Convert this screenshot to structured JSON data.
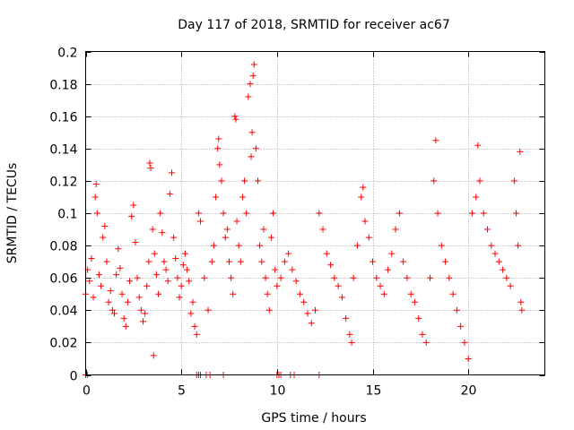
{
  "chart_data": {
    "type": "scatter",
    "title": "Day 117 of 2018, SRMTID for receiver ac67",
    "xlabel": "GPS time / hours",
    "ylabel": "SRMTID / TECUs",
    "xlim": [
      0,
      24
    ],
    "ylim": [
      0,
      0.2
    ],
    "xticks": [
      0,
      5,
      10,
      15,
      20
    ],
    "xtick_labels": [
      "0",
      "5",
      "10",
      "15",
      "20"
    ],
    "yticks": [
      0,
      0.02,
      0.04,
      0.06,
      0.08,
      0.1,
      0.12,
      0.14,
      0.16,
      0.18,
      0.2
    ],
    "ytick_labels": [
      "0",
      "0.02",
      "0.04",
      "0.06",
      "0.08",
      "0.1",
      "0.12",
      "0.14",
      "0.16",
      "0.18",
      "0.2"
    ],
    "grid": true,
    "marker": "+",
    "color": "#ff0000",
    "series": [
      {
        "name": "SRMTID",
        "points": [
          [
            0.0,
            0.05
          ],
          [
            0.1,
            0.065
          ],
          [
            0.2,
            0.058
          ],
          [
            0.3,
            0.072
          ],
          [
            0.4,
            0.048
          ],
          [
            0.5,
            0.11
          ],
          [
            0.55,
            0.118
          ],
          [
            0.6,
            0.1
          ],
          [
            0.7,
            0.062
          ],
          [
            0.8,
            0.055
          ],
          [
            0.9,
            0.085
          ],
          [
            1.0,
            0.092
          ],
          [
            1.1,
            0.07
          ],
          [
            1.2,
            0.045
          ],
          [
            1.3,
            0.052
          ],
          [
            1.4,
            0.04
          ],
          [
            1.5,
            0.038
          ],
          [
            1.6,
            0.062
          ],
          [
            1.7,
            0.078
          ],
          [
            1.8,
            0.066
          ],
          [
            1.9,
            0.05
          ],
          [
            2.0,
            0.035
          ],
          [
            2.1,
            0.03
          ],
          [
            2.2,
            0.045
          ],
          [
            2.3,
            0.058
          ],
          [
            2.4,
            0.098
          ],
          [
            2.5,
            0.105
          ],
          [
            2.6,
            0.082
          ],
          [
            2.7,
            0.06
          ],
          [
            2.8,
            0.048
          ],
          [
            2.9,
            0.04
          ],
          [
            3.0,
            0.033
          ],
          [
            3.1,
            0.038
          ],
          [
            3.2,
            0.055
          ],
          [
            3.3,
            0.07
          ],
          [
            3.35,
            0.131
          ],
          [
            3.4,
            0.128
          ],
          [
            3.5,
            0.09
          ],
          [
            3.55,
            0.012
          ],
          [
            3.6,
            0.075
          ],
          [
            3.7,
            0.062
          ],
          [
            3.8,
            0.05
          ],
          [
            3.9,
            0.1
          ],
          [
            4.0,
            0.088
          ],
          [
            4.1,
            0.07
          ],
          [
            4.2,
            0.065
          ],
          [
            4.3,
            0.058
          ],
          [
            4.4,
            0.112
          ],
          [
            4.5,
            0.125
          ],
          [
            4.6,
            0.085
          ],
          [
            4.7,
            0.072
          ],
          [
            4.8,
            0.06
          ],
          [
            4.9,
            0.048
          ],
          [
            5.0,
            0.055
          ],
          [
            5.1,
            0.068
          ],
          [
            5.2,
            0.075
          ],
          [
            5.3,
            0.065
          ],
          [
            5.4,
            0.058
          ],
          [
            5.5,
            0.038
          ],
          [
            5.6,
            0.045
          ],
          [
            5.7,
            0.03
          ],
          [
            5.8,
            0.025
          ],
          [
            5.9,
            0.1
          ],
          [
            6.0,
            0.095
          ],
          [
            6.2,
            0.06
          ],
          [
            6.4,
            0.04
          ],
          [
            6.6,
            0.07
          ],
          [
            6.7,
            0.08
          ],
          [
            6.8,
            0.11
          ],
          [
            6.9,
            0.14
          ],
          [
            6.95,
            0.146
          ],
          [
            7.0,
            0.13
          ],
          [
            7.1,
            0.12
          ],
          [
            7.2,
            0.1
          ],
          [
            7.3,
            0.085
          ],
          [
            7.4,
            0.09
          ],
          [
            7.5,
            0.07
          ],
          [
            7.6,
            0.06
          ],
          [
            7.7,
            0.05
          ],
          [
            7.8,
            0.16
          ],
          [
            7.85,
            0.158
          ],
          [
            7.9,
            0.095
          ],
          [
            8.0,
            0.08
          ],
          [
            8.1,
            0.07
          ],
          [
            8.2,
            0.11
          ],
          [
            8.3,
            0.12
          ],
          [
            8.4,
            0.1
          ],
          [
            8.5,
            0.172
          ],
          [
            8.6,
            0.18
          ],
          [
            8.65,
            0.135
          ],
          [
            8.7,
            0.15
          ],
          [
            8.75,
            0.185
          ],
          [
            8.8,
            0.192
          ],
          [
            8.9,
            0.14
          ],
          [
            9.0,
            0.12
          ],
          [
            9.1,
            0.08
          ],
          [
            9.2,
            0.07
          ],
          [
            9.3,
            0.09
          ],
          [
            9.4,
            0.06
          ],
          [
            9.5,
            0.05
          ],
          [
            9.6,
            0.04
          ],
          [
            9.7,
            0.085
          ],
          [
            9.8,
            0.1
          ],
          [
            9.9,
            0.065
          ],
          [
            10.0,
            0.055
          ],
          [
            10.2,
            0.06
          ],
          [
            10.4,
            0.07
          ],
          [
            10.6,
            0.075
          ],
          [
            10.8,
            0.065
          ],
          [
            11.0,
            0.058
          ],
          [
            11.2,
            0.05
          ],
          [
            11.4,
            0.045
          ],
          [
            11.6,
            0.038
          ],
          [
            11.8,
            0.032
          ],
          [
            12.0,
            0.04
          ],
          [
            12.2,
            0.1
          ],
          [
            12.4,
            0.09
          ],
          [
            12.6,
            0.075
          ],
          [
            12.8,
            0.068
          ],
          [
            13.0,
            0.06
          ],
          [
            13.2,
            0.055
          ],
          [
            13.4,
            0.048
          ],
          [
            13.6,
            0.035
          ],
          [
            13.8,
            0.025
          ],
          [
            13.9,
            0.02
          ],
          [
            14.0,
            0.06
          ],
          [
            14.2,
            0.08
          ],
          [
            14.4,
            0.11
          ],
          [
            14.5,
            0.116
          ],
          [
            14.6,
            0.095
          ],
          [
            14.8,
            0.085
          ],
          [
            15.0,
            0.07
          ],
          [
            15.2,
            0.06
          ],
          [
            15.4,
            0.055
          ],
          [
            15.6,
            0.05
          ],
          [
            15.8,
            0.065
          ],
          [
            16.0,
            0.075
          ],
          [
            16.2,
            0.09
          ],
          [
            16.4,
            0.1
          ],
          [
            16.6,
            0.07
          ],
          [
            16.8,
            0.06
          ],
          [
            17.0,
            0.05
          ],
          [
            17.2,
            0.045
          ],
          [
            17.4,
            0.035
          ],
          [
            17.6,
            0.025
          ],
          [
            17.8,
            0.02
          ],
          [
            18.0,
            0.06
          ],
          [
            18.2,
            0.12
          ],
          [
            18.3,
            0.145
          ],
          [
            18.4,
            0.1
          ],
          [
            18.6,
            0.08
          ],
          [
            18.8,
            0.07
          ],
          [
            19.0,
            0.06
          ],
          [
            19.2,
            0.05
          ],
          [
            19.4,
            0.04
          ],
          [
            19.6,
            0.03
          ],
          [
            19.8,
            0.02
          ],
          [
            20.0,
            0.01
          ],
          [
            20.2,
            0.1
          ],
          [
            20.4,
            0.11
          ],
          [
            20.5,
            0.142
          ],
          [
            20.6,
            0.12
          ],
          [
            20.8,
            0.1
          ],
          [
            21.0,
            0.09
          ],
          [
            21.2,
            0.08
          ],
          [
            21.4,
            0.075
          ],
          [
            21.6,
            0.07
          ],
          [
            21.8,
            0.065
          ],
          [
            22.0,
            0.06
          ],
          [
            22.2,
            0.055
          ],
          [
            22.4,
            0.12
          ],
          [
            22.5,
            0.1
          ],
          [
            22.6,
            0.08
          ],
          [
            22.7,
            0.138
          ],
          [
            22.75,
            0.045
          ],
          [
            22.8,
            0.04
          ],
          [
            0.0,
            0.0
          ],
          [
            0.1,
            0.0
          ],
          [
            5.8,
            0.0
          ],
          [
            5.9,
            0.0
          ],
          [
            6.0,
            0.0
          ],
          [
            6.3,
            0.0
          ],
          [
            6.5,
            0.0
          ],
          [
            7.2,
            0.0
          ],
          [
            10.0,
            0.0
          ],
          [
            10.1,
            0.0
          ],
          [
            10.2,
            0.0
          ],
          [
            10.7,
            0.0
          ],
          [
            10.9,
            0.0
          ],
          [
            12.2,
            0.0
          ]
        ]
      }
    ]
  }
}
